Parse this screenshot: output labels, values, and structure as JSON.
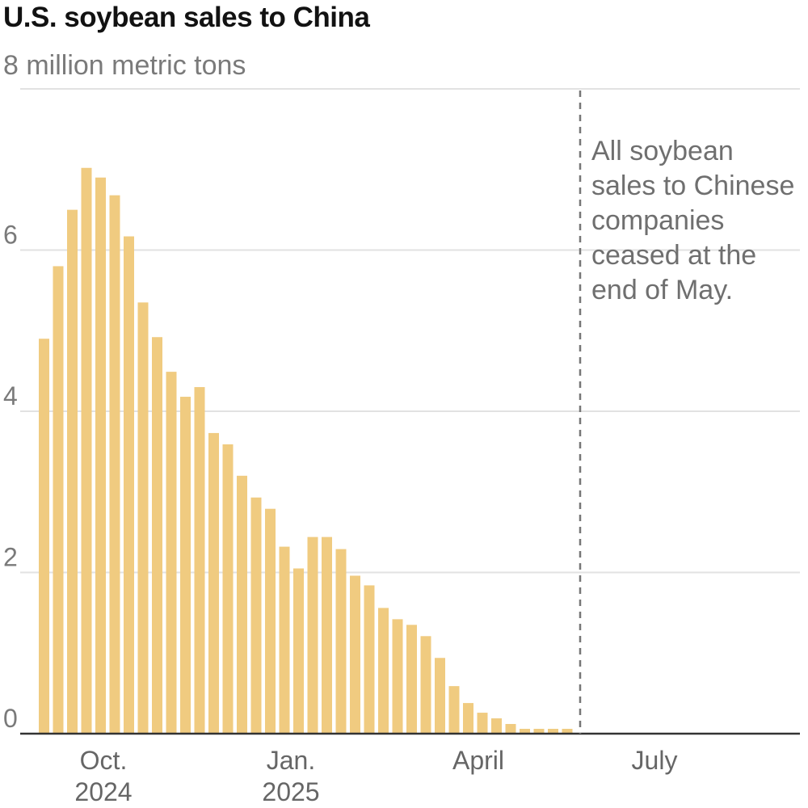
{
  "chart_data": {
    "type": "bar",
    "title": "U.S. soybean sales to China",
    "ylabel": "million metric tons",
    "ylim": [
      0,
      8
    ],
    "yticks": [
      0,
      2,
      4,
      6,
      8
    ],
    "ytick_labels": [
      "0",
      "2",
      "4",
      "6",
      "8 million metric tons"
    ],
    "grid": true,
    "bar_color": "#f0cb80",
    "x_period": "weekly, Sept. 2024 – May 2025",
    "values": [
      4.9,
      5.8,
      6.5,
      7.02,
      6.9,
      6.68,
      6.17,
      5.35,
      4.92,
      4.49,
      4.18,
      4.3,
      3.73,
      3.59,
      3.2,
      2.93,
      2.79,
      2.32,
      2.05,
      2.44,
      2.44,
      2.29,
      1.96,
      1.84,
      1.56,
      1.42,
      1.35,
      1.21,
      0.94,
      0.59,
      0.38,
      0.26,
      0.19,
      0.12,
      0.06,
      0.06,
      0.06,
      0.06
    ],
    "xtick_labels": [
      {
        "line1": "Oct.",
        "line2": "2024"
      },
      {
        "line1": "Jan.",
        "line2": "2025"
      },
      {
        "line1": "April",
        "line2": ""
      },
      {
        "line1": "July",
        "line2": ""
      }
    ],
    "annotation": "All soybean sales to Chinese companies ceased at the end of May."
  }
}
